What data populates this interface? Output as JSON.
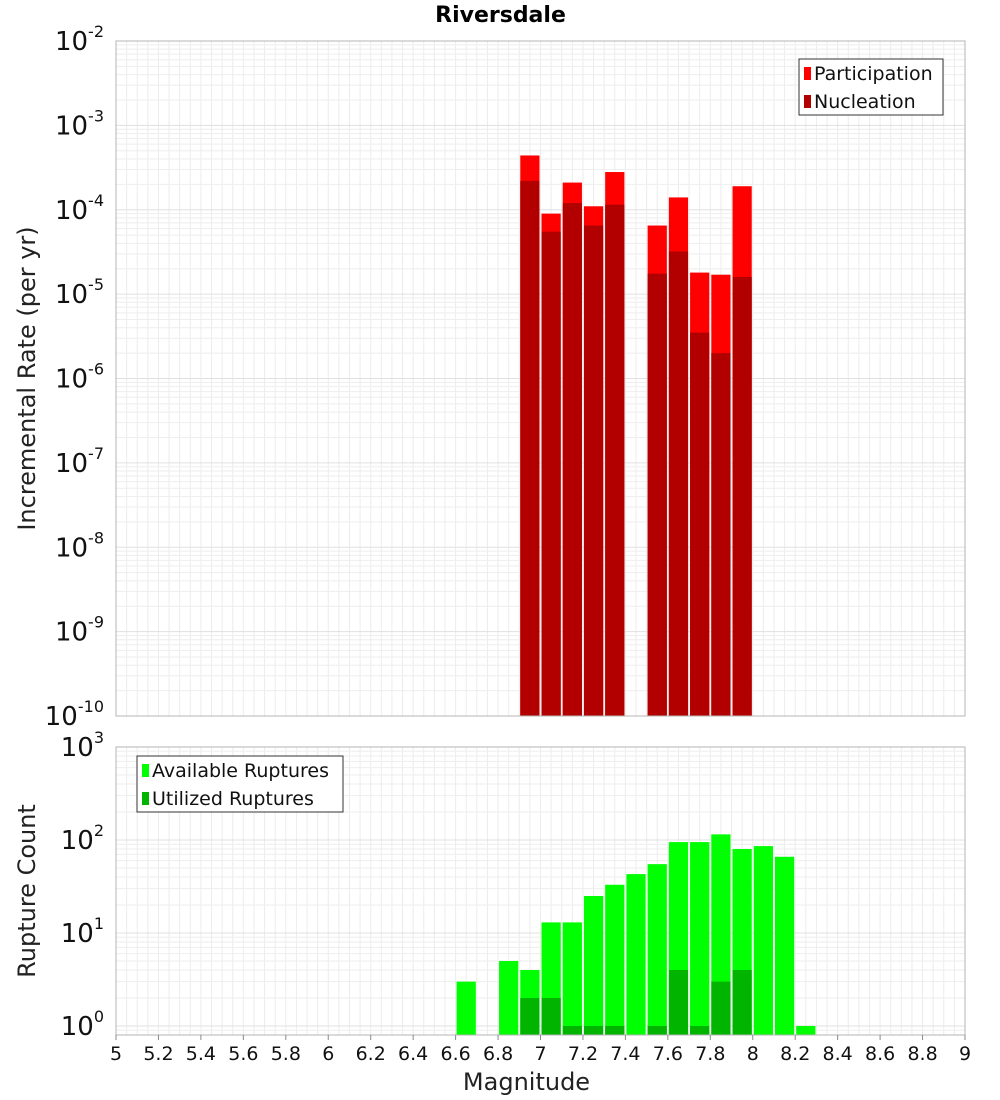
{
  "chart_data": [
    {
      "type": "bar",
      "title": "Riversdale",
      "xlabel": "",
      "ylabel": "Incremental Rate (per yr)",
      "y_scale": "log",
      "ylim": [
        1e-10,
        0.01
      ],
      "xlim": [
        5,
        9
      ],
      "grid": true,
      "legend_position": "top-right",
      "y_ticks": [
        {
          "base": "10",
          "exp": "-10",
          "value": 1e-10
        },
        {
          "base": "10",
          "exp": "-9",
          "value": 1e-09
        },
        {
          "base": "10",
          "exp": "-8",
          "value": 1e-08
        },
        {
          "base": "10",
          "exp": "-7",
          "value": 1e-07
        },
        {
          "base": "10",
          "exp": "-6",
          "value": 1e-06
        },
        {
          "base": "10",
          "exp": "-5",
          "value": 1e-05
        },
        {
          "base": "10",
          "exp": "-4",
          "value": 0.0001
        },
        {
          "base": "10",
          "exp": "-3",
          "value": 0.001
        },
        {
          "base": "10",
          "exp": "-2",
          "value": 0.01
        }
      ],
      "x": [
        6.95,
        7.05,
        7.15,
        7.25,
        7.35,
        7.55,
        7.65,
        7.75,
        7.85,
        7.95
      ],
      "series": [
        {
          "name": "Participation",
          "color": "#ff0000",
          "values": [
            0.00044,
            9e-05,
            0.00021,
            0.00011,
            0.00028,
            6.5e-05,
            0.00014,
            1.8e-05,
            1.7e-05,
            0.00019
          ]
        },
        {
          "name": "Nucleation",
          "color": "#b20000",
          "values": [
            0.00022,
            5.5e-05,
            0.00012,
            6.5e-05,
            0.000115,
            1.75e-05,
            3.2e-05,
            3.5e-06,
            2e-06,
            1.6e-05
          ]
        }
      ]
    },
    {
      "type": "bar",
      "title": "",
      "xlabel": "Magnitude",
      "ylabel": "Rupture Count",
      "y_scale": "log",
      "ylim": [
        0.8,
        1000
      ],
      "xlim": [
        5,
        9
      ],
      "grid": true,
      "legend_position": "top-left",
      "y_ticks": [
        {
          "base": "10",
          "exp": "0",
          "value": 1
        },
        {
          "base": "10",
          "exp": "1",
          "value": 10
        },
        {
          "base": "10",
          "exp": "2",
          "value": 100
        },
        {
          "base": "10",
          "exp": "3",
          "value": 1000
        }
      ],
      "x_ticks": [
        "5",
        "5.2",
        "5.4",
        "5.6",
        "5.8",
        "6",
        "6.2",
        "6.4",
        "6.6",
        "6.8",
        "7",
        "7.2",
        "7.4",
        "7.6",
        "7.8",
        "8",
        "8.2",
        "8.4",
        "8.6",
        "8.8",
        "9"
      ],
      "x": [
        6.65,
        6.85,
        6.95,
        7.05,
        7.15,
        7.25,
        7.35,
        7.45,
        7.55,
        7.65,
        7.75,
        7.85,
        7.95,
        8.05,
        8.15,
        8.25
      ],
      "series": [
        {
          "name": "Available Ruptures",
          "color": "#00ff00",
          "values": [
            3,
            5,
            4,
            13,
            13,
            25,
            33,
            43,
            55,
            95,
            95,
            115,
            80,
            86,
            66,
            1
          ]
        },
        {
          "name": "Utilized Ruptures",
          "color": "#00b400",
          "values": [
            null,
            null,
            2,
            2,
            1,
            1,
            1,
            null,
            1,
            4,
            1,
            3,
            4,
            null,
            null,
            null
          ]
        }
      ]
    }
  ]
}
